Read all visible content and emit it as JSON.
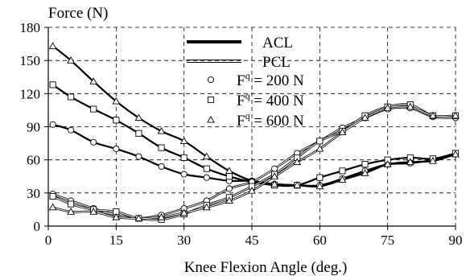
{
  "chart_data": {
    "type": "line",
    "ylabel": "Force (N)",
    "xlabel": "Knee Flexion Angle (deg.)",
    "xlim": [
      0,
      90
    ],
    "ylim": [
      0,
      180
    ],
    "x_ticks": [
      "0",
      "15",
      "30",
      "45",
      "60",
      "75",
      "90"
    ],
    "y_ticks": [
      "0",
      "30",
      "60",
      "90",
      "120",
      "150",
      "180"
    ],
    "grid": "dashed",
    "legend_position": "center-top",
    "legend": {
      "lines": [
        {
          "label": "ACL",
          "style": "thick"
        },
        {
          "label": "PCL",
          "style": "double-thin"
        }
      ],
      "markers": [
        {
          "prefix": "F",
          "sup": "q",
          "suffix": " = 200 N",
          "marker": "circle"
        },
        {
          "prefix": "F",
          "sup": "q",
          "suffix": " = 400 N",
          "marker": "square"
        },
        {
          "prefix": "F",
          "sup": "q",
          "suffix": " = 600 N",
          "marker": "triangle"
        }
      ]
    },
    "series": [
      {
        "ligament": "ACL",
        "load": "200 N",
        "marker": "circle",
        "x": [
          1,
          5,
          10,
          15,
          20,
          25,
          30,
          35,
          40,
          45,
          50,
          55,
          60,
          65,
          70,
          75,
          80,
          85,
          90
        ],
        "y": [
          92,
          87,
          76,
          70,
          63,
          54,
          47,
          44,
          41,
          41,
          38,
          37,
          37,
          43,
          50,
          56,
          57,
          60,
          65
        ]
      },
      {
        "ligament": "ACL",
        "load": "400 N",
        "marker": "square",
        "x": [
          1,
          5,
          10,
          15,
          20,
          25,
          30,
          35,
          40,
          45,
          50,
          55,
          60,
          65,
          70,
          75,
          80,
          85,
          90
        ],
        "y": [
          128,
          117,
          106,
          96,
          84,
          71,
          62,
          52,
          45,
          40,
          37,
          37,
          44,
          50,
          56,
          60,
          62,
          61,
          66
        ]
      },
      {
        "ligament": "ACL",
        "load": "600 N",
        "marker": "triangle",
        "x": [
          1,
          5,
          10,
          15,
          20,
          25,
          30,
          35,
          40,
          45,
          50,
          55,
          60,
          65,
          70,
          75,
          80,
          85,
          90
        ],
        "y": [
          163,
          150,
          131,
          113,
          98,
          86,
          77,
          63,
          50,
          41,
          38,
          37,
          36,
          42,
          48,
          56,
          58,
          59,
          65
        ]
      },
      {
        "ligament": "PCL",
        "load": "200 N",
        "marker": "circle",
        "x": [
          1,
          5,
          10,
          15,
          20,
          25,
          30,
          35,
          40,
          45,
          50,
          55,
          60,
          65,
          70,
          75,
          80,
          85,
          90
        ],
        "y": [
          29,
          23,
          16,
          10,
          7,
          10,
          16,
          23,
          34,
          40,
          52,
          66,
          77,
          89,
          98,
          106,
          107,
          99,
          98
        ]
      },
      {
        "ligament": "PCL",
        "load": "400 N",
        "marker": "square",
        "x": [
          1,
          5,
          10,
          15,
          20,
          25,
          30,
          35,
          40,
          45,
          50,
          55,
          60,
          65,
          70,
          75,
          80,
          85,
          90
        ],
        "y": [
          27,
          20,
          15,
          13,
          7,
          6,
          11,
          19,
          26,
          36,
          47,
          62,
          77,
          86,
          100,
          108,
          110,
          100,
          100
        ]
      },
      {
        "ligament": "PCL",
        "load": "600 N",
        "marker": "triangle",
        "x": [
          1,
          5,
          10,
          15,
          20,
          25,
          30,
          35,
          40,
          45,
          50,
          55,
          60,
          65,
          70,
          75,
          80,
          85,
          90
        ],
        "y": [
          17,
          13,
          13,
          8,
          7,
          8,
          12,
          17,
          23,
          32,
          45,
          58,
          70,
          85,
          98,
          107,
          108,
          100,
          100
        ]
      }
    ]
  }
}
